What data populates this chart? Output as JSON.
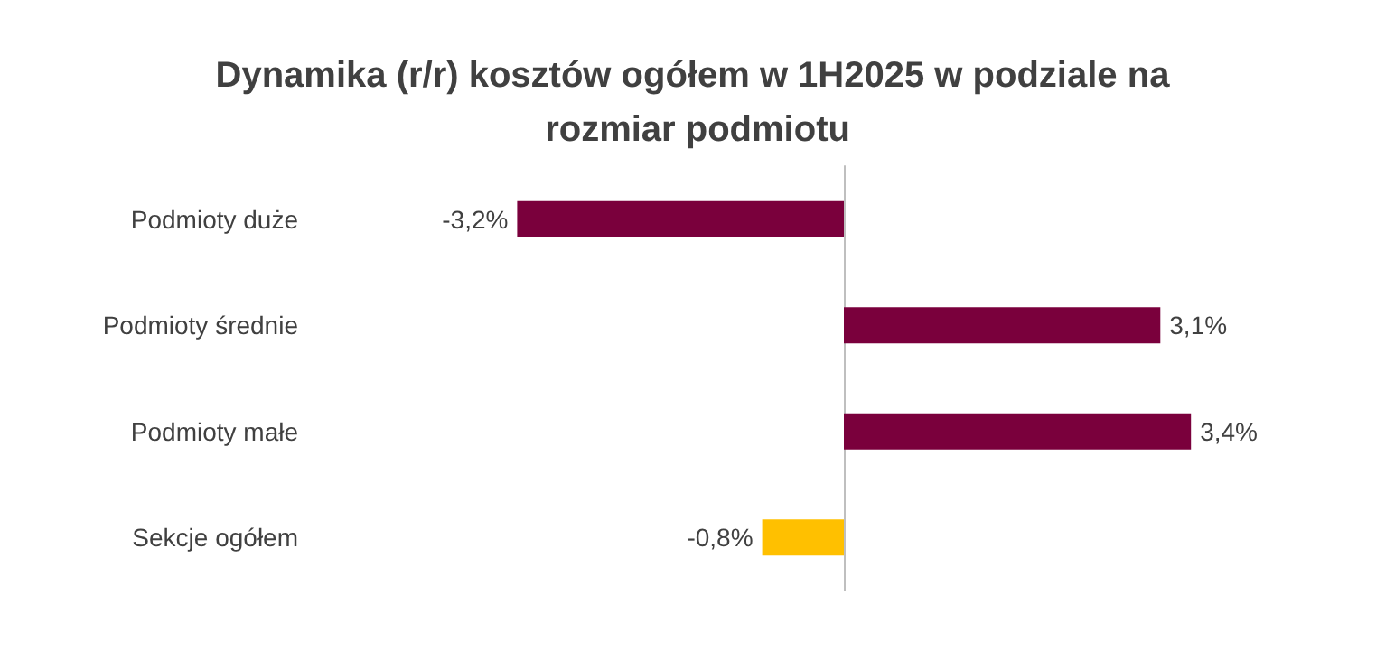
{
  "chart_data": {
    "type": "bar",
    "orientation": "horizontal",
    "title": "Dynamika (r/r) kosztów ogółem w 1H2025 w podziale na rozmiar podmiotu",
    "categories": [
      "Podmioty duże",
      "Podmioty średnie",
      "Podmioty małe",
      "Sekcje ogółem"
    ],
    "values": [
      -3.2,
      3.1,
      3.4,
      -0.8
    ],
    "colors": [
      "#7a003c",
      "#7a003c",
      "#7a003c",
      "#ffc000"
    ],
    "value_labels": [
      "-3,2%",
      "3,1%",
      "3,4%",
      "-0,8%"
    ]
  }
}
